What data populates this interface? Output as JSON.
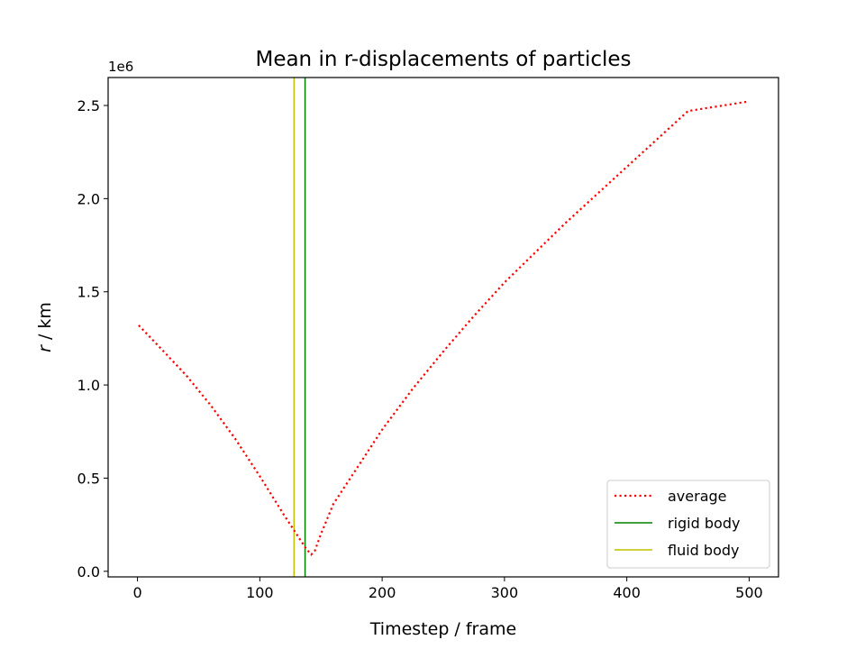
{
  "chart_data": {
    "type": "line",
    "title": "Mean in r-displacements of particles",
    "xlabel": "Timestep / frame",
    "ylabel_italic": "r",
    "ylabel_rest": " / km",
    "y_offset_label": "1e6",
    "xlim": [
      -24,
      524
    ],
    "ylim": [
      -0.03,
      2.65
    ],
    "xticks": [
      0,
      100,
      200,
      300,
      400,
      500
    ],
    "yticks": [
      0.0,
      0.5,
      1.0,
      1.5,
      2.0,
      2.5
    ],
    "xtick_labels": [
      "0",
      "100",
      "200",
      "300",
      "400",
      "500"
    ],
    "ytick_labels": [
      "0.0",
      "0.5",
      "1.0",
      "1.5",
      "2.0",
      "2.5"
    ],
    "series": [
      {
        "name": "average",
        "style": "dotted",
        "color": "#ff0000",
        "x": [
          1,
          20,
          40,
          60,
          80,
          100,
          120,
          130,
          138,
          142,
          145,
          150,
          160,
          180,
          200,
          225,
          250,
          275,
          300,
          350,
          400,
          450,
          498
        ],
        "y": [
          1.32,
          1.19,
          1.05,
          0.89,
          0.71,
          0.51,
          0.3,
          0.2,
          0.12,
          0.09,
          0.11,
          0.2,
          0.36,
          0.56,
          0.76,
          0.98,
          1.18,
          1.37,
          1.55,
          1.87,
          2.17,
          2.47,
          2.52
        ]
      }
    ],
    "vlines": [
      {
        "name": "rigid body",
        "x": 137,
        "color": "#008000"
      },
      {
        "name": "fluid body",
        "x": 128,
        "color": "#bfbf00"
      }
    ],
    "legend": {
      "position": "lower-right",
      "entries": [
        "average",
        "rigid body",
        "fluid body"
      ]
    },
    "grid": false
  }
}
